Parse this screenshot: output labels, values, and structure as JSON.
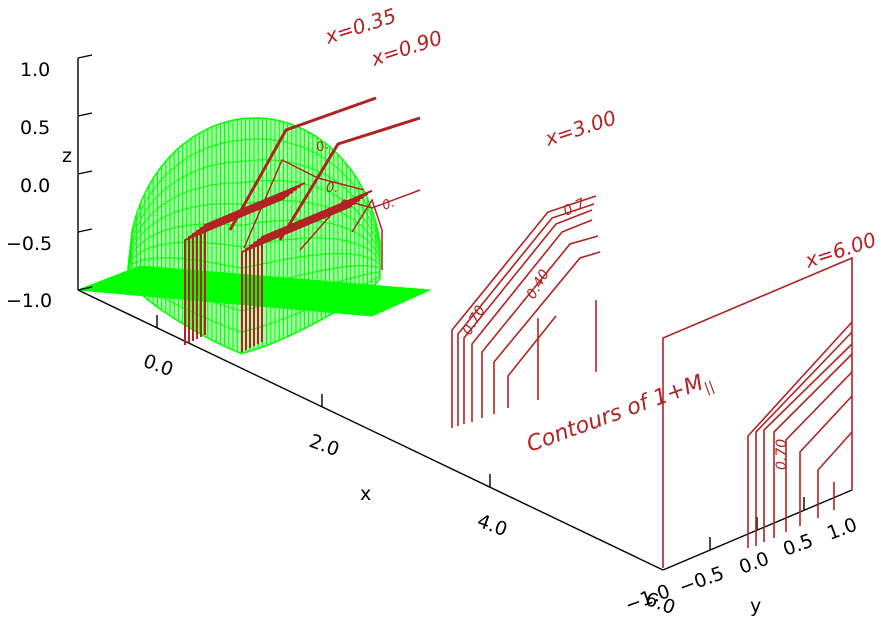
{
  "axes": {
    "z_label": "z",
    "z_ticks": [
      "1.0",
      "0.5",
      "0.0",
      "−0.5",
      "−1.0"
    ],
    "x_label": "x",
    "x_ticks": [
      "0.0",
      "2.0",
      "4.0",
      "6.0"
    ],
    "y_label": "y",
    "y_ticks": [
      "−1.0",
      "−0.5",
      "0.0",
      "0.5",
      "1.0"
    ]
  },
  "sections": [
    {
      "label": "x=0.35"
    },
    {
      "label": "x=0.90"
    },
    {
      "label": "x=3.00"
    },
    {
      "label": "x=6.00"
    }
  ],
  "contour_labels": {
    "s1_a": "0.",
    "s1_b": "0.",
    "s1_c": "0.",
    "s3_top": "0.7",
    "s3_a": "0.70",
    "s3_b": "0.40",
    "s4_a": "0.70"
  },
  "title_main": "Contours of 1+M",
  "title_sub": "||",
  "colors": {
    "surface": "#00ff00",
    "contours": "#b22222",
    "axes": "#000000"
  }
}
